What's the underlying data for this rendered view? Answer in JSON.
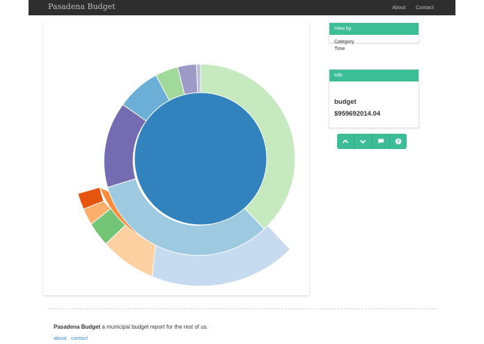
{
  "header": {
    "brand": "Pasadena Budget",
    "nav": [
      {
        "label": "About"
      },
      {
        "label": "Contact"
      }
    ]
  },
  "view_by": {
    "title": "View by",
    "options": [
      {
        "label": "Category"
      },
      {
        "label": "Time"
      }
    ]
  },
  "info": {
    "title": "Info",
    "name": "budget",
    "value": "$959692014.04"
  },
  "actions": {
    "icons": [
      "chevron-up-icon",
      "chevron-down-icon",
      "comment-icon",
      "help-icon"
    ]
  },
  "footer": {
    "brand": "Pasadena Budget",
    "tagline": "a municipal budget report for the rest of us.",
    "links": [
      {
        "label": "about"
      },
      {
        "label": "contact"
      }
    ]
  },
  "colors": {
    "navbar": "#2e2e2e",
    "accent": "#3dbd96",
    "link": "#3d8fd6",
    "center": "#3182bd",
    "ring1_light_green": "#c7e9c0",
    "ring1_light_blue": "#9ecae1",
    "ring1_purple": "#756bb1",
    "ring1_blue": "#6baed6",
    "ring1_green": "#a1d99b",
    "ring1_lavender": "#9e9ac8",
    "ring2_pale_blue": "#c6dbef",
    "ring2_orange": "#fd8d3c",
    "ring2_peach": "#fdd0a2",
    "ring2_green": "#74c476",
    "ring2_dark_orange": "#e6550d"
  }
}
